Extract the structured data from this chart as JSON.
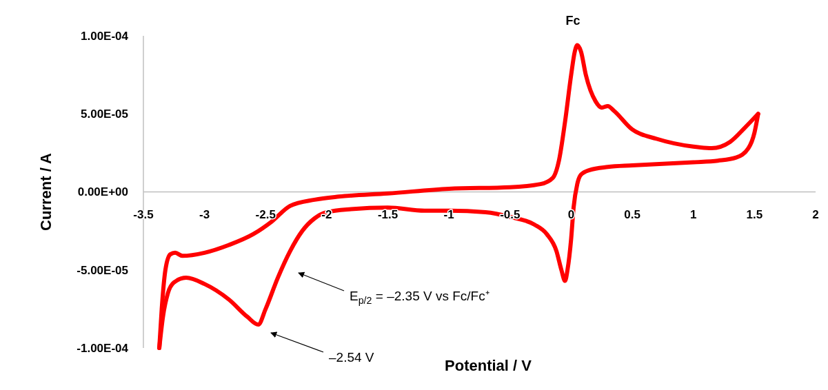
{
  "chart_data": {
    "type": "line",
    "xlabel": "Potential / V",
    "ylabel": "Current / A",
    "xlim": [
      -3.5,
      2
    ],
    "xticks": [
      -3.5,
      -3,
      -2.5,
      -2,
      -1.5,
      -1,
      -0.5,
      0,
      0.5,
      1,
      1.5,
      2
    ],
    "ylim": [
      -0.0001,
      0.0001
    ],
    "yticks": [
      {
        "value": -0.0001,
        "label": "-1.00E-04"
      },
      {
        "value": -5e-05,
        "label": "-5.00E-05"
      },
      {
        "value": 0,
        "label": "0.00E+00"
      },
      {
        "value": 5e-05,
        "label": "5.00E-05"
      },
      {
        "value": 0.0001,
        "label": "1.00E-04"
      }
    ],
    "marker": "none",
    "line_style": "solid",
    "annotations": [
      "Fc",
      "E$_{p/2}$ = –2.35 V vs Fc/Fc⁺",
      "–2.54 V"
    ],
    "series": [
      {
        "color": "#ff0000",
        "x": [
          -3.37,
          -3.34,
          -3.3,
          -3.25,
          -3.15,
          -3.0,
          -2.8,
          -2.65,
          -2.56,
          -2.5,
          -2.4,
          -2.3,
          -2.2,
          -2.1,
          -2.0,
          -1.8,
          -1.5,
          -1.2,
          -1.0,
          -0.7,
          -0.5,
          -0.3,
          -0.2,
          -0.12,
          -0.08,
          -0.05,
          -0.03,
          0.0,
          0.02,
          0.05,
          0.08,
          0.15,
          0.3,
          0.5,
          1.0,
          1.2,
          1.35,
          1.45,
          1.5,
          1.53
        ],
        "values": [
          -0.0001,
          -8e-05,
          -6.5e-05,
          -5.8e-05,
          -5.5e-05,
          -5.9e-05,
          -6.9e-05,
          -8e-05,
          -8.5e-05,
          -7.5e-05,
          -5.5e-05,
          -3.8e-05,
          -2.5e-05,
          -1.7e-05,
          -1.3e-05,
          -1.1e-05,
          -1e-05,
          -1.2e-05,
          -1.2e-05,
          -1.3e-05,
          -1.6e-05,
          -2.1e-05,
          -2.7e-05,
          -3.8e-05,
          -5e-05,
          -5.7e-05,
          -5e-05,
          -3e-05,
          -1e-05,
          5e-06,
          1.1e-05,
          1.4e-05,
          1.6e-05,
          1.7e-05,
          1.9e-05,
          2e-05,
          2.2e-05,
          2.8e-05,
          3.8e-05,
          5e-05
        ]
      },
      {
        "color": "#ff0000",
        "x": [
          -3.37,
          -3.35,
          -3.32,
          -3.28,
          -3.24,
          -3.18,
          -3.0,
          -2.8,
          -2.6,
          -2.45,
          -2.3,
          -2.1,
          -1.9,
          -1.5,
          -1.0,
          -0.5,
          -0.25,
          -0.15,
          -0.1,
          -0.05,
          0.0,
          0.03,
          0.05,
          0.08,
          0.12,
          0.2,
          0.25,
          0.3,
          0.35,
          0.5,
          0.7,
          1.0,
          1.15,
          1.3,
          1.42,
          1.53
        ],
        "values": [
          -0.0001,
          -7.5e-05,
          -5e-05,
          -4e-05,
          -3.9e-05,
          -4.1e-05,
          -3.9e-05,
          -3.4e-05,
          -2.7e-05,
          -1.9e-05,
          -9e-06,
          -5e-06,
          -3e-06,
          -1e-06,
          2e-06,
          3e-06,
          5e-06,
          9e-06,
          2e-05,
          4.5e-05,
          7.5e-05,
          9e-05,
          9.4e-05,
          9e-05,
          7.5e-05,
          5.8e-05,
          5.4e-05,
          5.5e-05,
          5.2e-05,
          4e-05,
          3.4e-05,
          2.9e-05,
          2.8e-05,
          3.2e-05,
          4.1e-05,
          5e-05
        ]
      }
    ]
  }
}
